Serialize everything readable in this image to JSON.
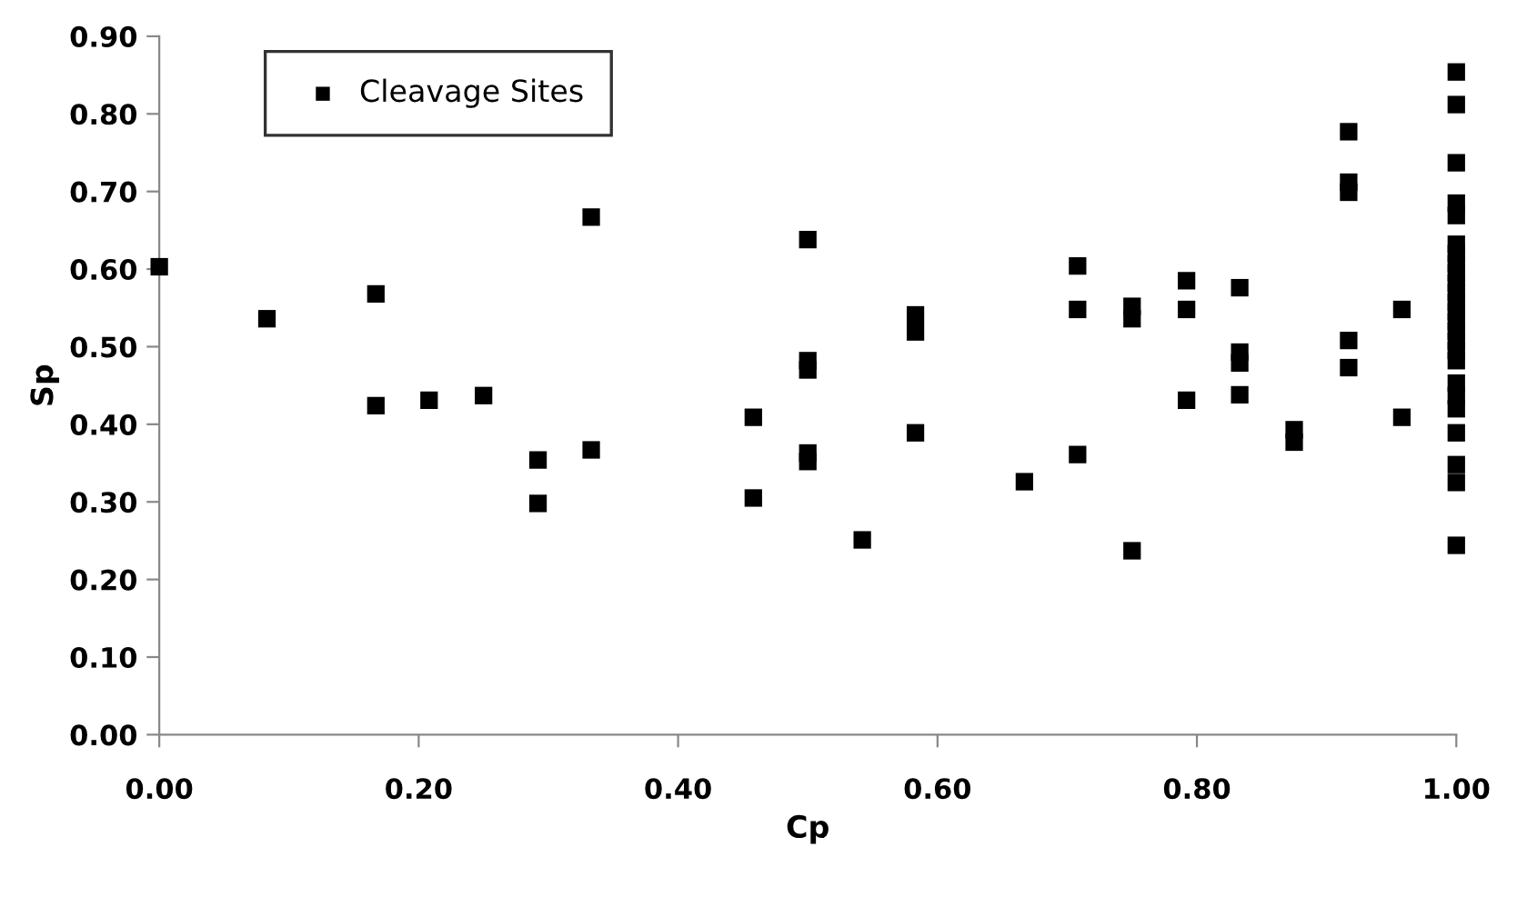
{
  "chart_data": {
    "type": "scatter",
    "xlabel": "Cp",
    "ylabel": "Sp",
    "xlim": [
      0,
      1
    ],
    "ylim": [
      0,
      0.9
    ],
    "xticks": [
      {
        "value": 0,
        "label": "0.00"
      },
      {
        "value": 0.2,
        "label": "0.20"
      },
      {
        "value": 0.4,
        "label": "0.40"
      },
      {
        "value": 0.6,
        "label": "0.60"
      },
      {
        "value": 0.8,
        "label": "0.80"
      },
      {
        "value": 1,
        "label": "1.00"
      }
    ],
    "yticks": [
      {
        "value": 0,
        "label": "0.00"
      },
      {
        "value": 0.1,
        "label": "0.10"
      },
      {
        "value": 0.2,
        "label": "0.20"
      },
      {
        "value": 0.3,
        "label": "0.30"
      },
      {
        "value": 0.4,
        "label": "0.40"
      },
      {
        "value": 0.5,
        "label": "0.50"
      },
      {
        "value": 0.6,
        "label": "0.60"
      },
      {
        "value": 0.7,
        "label": "0.70"
      },
      {
        "value": 0.8,
        "label": "0.80"
      },
      {
        "value": 0.9,
        "label": "0.90"
      }
    ],
    "grid": false,
    "legend": "top left",
    "marker": "square",
    "series": [
      {
        "name": "Cleavage Sites",
        "color": "#000000",
        "x": [
          0,
          0.083,
          0.167,
          0.167,
          0.208,
          0.25,
          0.292,
          0.292,
          0.333,
          0.333,
          0.458,
          0.458,
          0.5,
          0.5,
          0.5,
          0.5,
          0.5,
          0.542,
          0.583,
          0.583,
          0.583,
          0.667,
          0.708,
          0.708,
          0.708,
          0.75,
          0.75,
          0.75,
          0.792,
          0.792,
          0.792,
          0.833,
          0.833,
          0.833,
          0.833,
          0.875,
          0.875,
          0.917,
          0.917,
          0.917,
          0.917,
          0.917,
          0.958,
          0.958,
          1,
          1,
          1,
          1,
          1,
          1,
          1,
          1,
          1,
          1,
          1,
          1,
          1,
          1,
          1,
          1,
          1,
          1,
          1,
          1,
          1,
          1,
          1,
          1,
          1
        ],
        "values": [
          0.603,
          0.536,
          0.568,
          0.424,
          0.431,
          0.437,
          0.354,
          0.298,
          0.667,
          0.367,
          0.409,
          0.305,
          0.638,
          0.482,
          0.47,
          0.363,
          0.352,
          0.251,
          0.541,
          0.519,
          0.389,
          0.326,
          0.604,
          0.548,
          0.361,
          0.552,
          0.536,
          0.237,
          0.585,
          0.548,
          0.431,
          0.576,
          0.493,
          0.479,
          0.438,
          0.393,
          0.377,
          0.777,
          0.712,
          0.699,
          0.508,
          0.473,
          0.548,
          0.409,
          0.854,
          0.812,
          0.737,
          0.685,
          0.669,
          0.632,
          0.62,
          0.607,
          0.595,
          0.582,
          0.57,
          0.557,
          0.545,
          0.532,
          0.52,
          0.507,
          0.495,
          0.482,
          0.453,
          0.437,
          0.42,
          0.389,
          0.348,
          0.325,
          0.244
        ]
      }
    ]
  }
}
